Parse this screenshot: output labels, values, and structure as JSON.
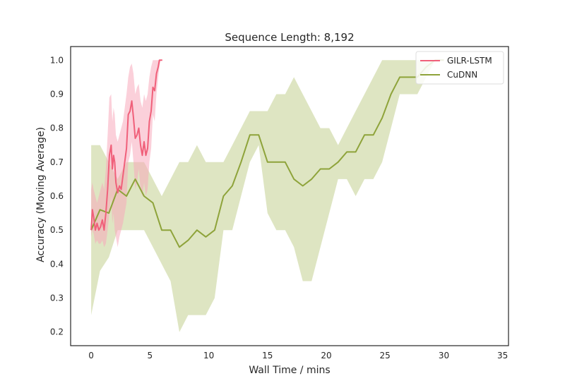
{
  "chart_data": {
    "type": "line",
    "title": "Sequence Length: 8,192",
    "xlabel": "Wall Time / mins",
    "ylabel": "Accuracy (Moving Average)",
    "xlim": [
      -1.75,
      35.5
    ],
    "ylim": [
      0.16,
      1.04
    ],
    "xticks": [
      0,
      5,
      10,
      15,
      20,
      25,
      30,
      35
    ],
    "yticks": [
      0.2,
      0.3,
      0.4,
      0.5,
      0.6,
      0.7,
      0.8,
      0.9,
      1.0
    ],
    "xtick_labels": [
      "0",
      "5",
      "10",
      "15",
      "20",
      "25",
      "30",
      "35"
    ],
    "ytick_labels": [
      "0.2",
      "0.3",
      "0.4",
      "0.5",
      "0.6",
      "0.7",
      "0.8",
      "0.9",
      "1.0"
    ],
    "grid": false,
    "legend_position": "top-right",
    "series": [
      {
        "name": "GILR-LSTM",
        "color": "#f0607a",
        "band_color": "#f8a9bb",
        "x": [
          0.0,
          0.1,
          0.2,
          0.35,
          0.5,
          0.65,
          0.8,
          0.95,
          1.1,
          1.25,
          1.4,
          1.55,
          1.7,
          1.8,
          1.9,
          2.0,
          2.1,
          2.25,
          2.4,
          2.55,
          2.7,
          2.85,
          3.0,
          3.15,
          3.3,
          3.45,
          3.6,
          3.75,
          3.9,
          4.05,
          4.2,
          4.35,
          4.5,
          4.65,
          4.8,
          4.95,
          5.1,
          5.25,
          5.4,
          5.55,
          5.7,
          5.8,
          5.9,
          6.05
        ],
        "y": [
          0.5,
          0.56,
          0.54,
          0.5,
          0.52,
          0.5,
          0.51,
          0.53,
          0.5,
          0.55,
          0.62,
          0.72,
          0.75,
          0.68,
          0.72,
          0.7,
          0.64,
          0.61,
          0.63,
          0.62,
          0.66,
          0.7,
          0.74,
          0.84,
          0.85,
          0.88,
          0.83,
          0.77,
          0.78,
          0.8,
          0.75,
          0.72,
          0.76,
          0.72,
          0.74,
          0.82,
          0.85,
          0.92,
          0.91,
          0.96,
          0.98,
          1.0,
          1.0,
          1.0
        ],
        "band_upper": [
          0.62,
          0.64,
          0.62,
          0.6,
          0.58,
          0.6,
          0.62,
          0.64,
          0.62,
          0.68,
          0.78,
          0.89,
          0.9,
          0.82,
          0.86,
          0.84,
          0.78,
          0.76,
          0.78,
          0.8,
          0.82,
          0.86,
          0.9,
          0.95,
          0.98,
          0.99,
          0.96,
          0.9,
          0.92,
          0.93,
          0.88,
          0.86,
          0.9,
          0.88,
          0.9,
          0.95,
          0.98,
          1.0,
          1.0,
          1.0,
          1.0,
          1.0,
          1.0,
          1.0
        ],
        "band_lower": [
          0.48,
          0.5,
          0.49,
          0.46,
          0.47,
          0.46,
          0.46,
          0.47,
          0.45,
          0.46,
          0.5,
          0.55,
          0.6,
          0.52,
          0.55,
          0.5,
          0.48,
          0.45,
          0.48,
          0.5,
          0.52,
          0.55,
          0.58,
          0.7,
          0.72,
          0.76,
          0.7,
          0.62,
          0.64,
          0.68,
          0.62,
          0.6,
          0.64,
          0.6,
          0.62,
          0.7,
          0.74,
          0.84,
          0.82,
          0.9,
          0.95,
          0.98,
          1.0,
          1.0
        ]
      },
      {
        "name": "CuDNN",
        "color": "#8ea33a",
        "band_color": "#d3dcad",
        "x": [
          0.0,
          0.75,
          1.5,
          2.25,
          3.0,
          3.75,
          4.5,
          5.25,
          6.0,
          6.75,
          7.5,
          8.25,
          9.0,
          9.75,
          10.5,
          11.25,
          12.0,
          12.75,
          13.5,
          14.25,
          15.0,
          15.75,
          16.5,
          17.25,
          18.0,
          18.75,
          19.5,
          20.25,
          21.0,
          21.75,
          22.5,
          23.25,
          24.0,
          24.75,
          25.5,
          26.25,
          27.0,
          27.75,
          28.5,
          29.25,
          30.0
        ],
        "y": [
          0.5,
          0.56,
          0.55,
          0.62,
          0.6,
          0.65,
          0.6,
          0.58,
          0.5,
          0.5,
          0.45,
          0.47,
          0.5,
          0.48,
          0.5,
          0.6,
          0.63,
          0.7,
          0.78,
          0.78,
          0.7,
          0.7,
          0.7,
          0.65,
          0.63,
          0.65,
          0.68,
          0.68,
          0.7,
          0.73,
          0.73,
          0.78,
          0.78,
          0.83,
          0.9,
          0.95,
          0.95,
          0.95,
          0.98,
          1.0,
          1.0
        ],
        "band_upper": [
          0.75,
          0.75,
          0.7,
          0.65,
          0.7,
          0.7,
          0.7,
          0.65,
          0.6,
          0.65,
          0.7,
          0.7,
          0.75,
          0.7,
          0.7,
          0.7,
          0.75,
          0.8,
          0.85,
          0.85,
          0.85,
          0.9,
          0.9,
          0.95,
          0.9,
          0.85,
          0.8,
          0.8,
          0.75,
          0.8,
          0.85,
          0.9,
          0.95,
          1.0,
          1.0,
          1.0,
          1.0,
          1.0,
          1.0,
          1.0,
          1.0
        ],
        "band_lower": [
          0.25,
          0.38,
          0.42,
          0.5,
          0.5,
          0.5,
          0.5,
          0.45,
          0.4,
          0.35,
          0.2,
          0.25,
          0.25,
          0.25,
          0.3,
          0.5,
          0.5,
          0.6,
          0.7,
          0.75,
          0.55,
          0.5,
          0.5,
          0.45,
          0.35,
          0.35,
          0.45,
          0.55,
          0.65,
          0.65,
          0.6,
          0.65,
          0.65,
          0.7,
          0.8,
          0.9,
          0.9,
          0.9,
          0.95,
          1.0,
          1.0
        ]
      }
    ]
  }
}
